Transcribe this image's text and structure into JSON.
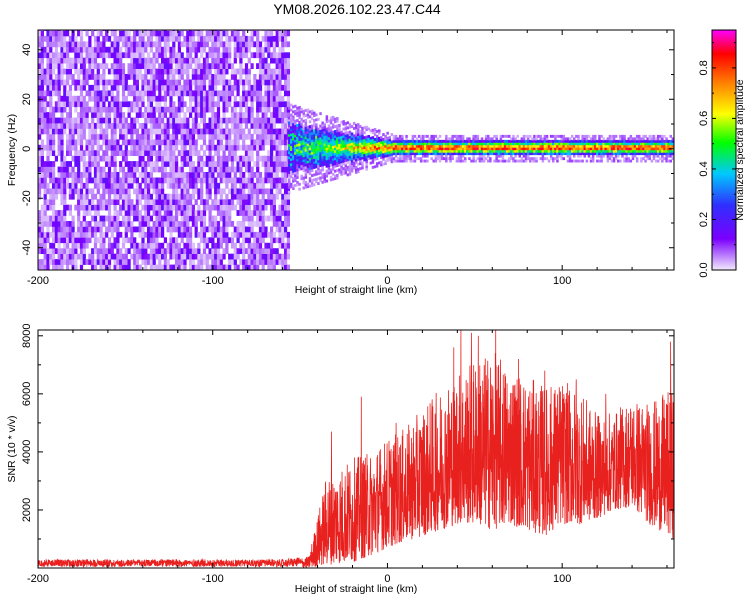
{
  "title": "YM08.2026.102.23.47.C44",
  "chart_data": [
    {
      "type": "heatmap",
      "name": "spectrogram",
      "xlabel": "Height of straight line (km)",
      "ylabel": "Frequency (Hz)",
      "xlim": [
        -200,
        164
      ],
      "ylim": [
        -49,
        48
      ],
      "xticks": [
        -200,
        -100,
        0,
        100
      ],
      "yticks": [
        -40,
        -20,
        0,
        20,
        40
      ],
      "noise_region_x": [
        -200,
        -57
      ],
      "signal_band_center_hz": 0,
      "signal_band_halfwidth_hz": [
        10,
        3
      ],
      "colorbar": {
        "label": "Normalized spectral amplitude",
        "range": [
          0.0,
          0.95
        ],
        "ticks": [
          0.0,
          0.2,
          0.4,
          0.6,
          0.8
        ],
        "colormap": [
          "#f2eafc",
          "#7a00ff",
          "#2f2fff",
          "#00c8ff",
          "#00ff00",
          "#ffff00",
          "#ff7f00",
          "#ff0000",
          "#ff00ff"
        ]
      }
    },
    {
      "type": "line",
      "name": "snr",
      "xlabel": "Height of straight line (km)",
      "ylabel": "SNR (10 * v/v)",
      "xlim": [
        -200,
        164
      ],
      "ylim": [
        0,
        8200
      ],
      "xticks": [
        -200,
        -100,
        0,
        100
      ],
      "yticks": [
        2000,
        4000,
        6000,
        8000
      ],
      "color": "#e8201e",
      "envelope": {
        "x": [
          -200,
          -60,
          -45,
          -35,
          -20,
          -10,
          0,
          10,
          20,
          30,
          40,
          50,
          60,
          70,
          80,
          90,
          100,
          110,
          120,
          130,
          140,
          150,
          164
        ],
        "low": [
          0,
          0,
          0,
          100,
          200,
          400,
          700,
          900,
          1100,
          1300,
          1500,
          1500,
          1300,
          1500,
          1300,
          1100,
          1500,
          1500,
          1700,
          2000,
          2100,
          1500,
          1000
        ],
        "high": [
          300,
          300,
          400,
          3200,
          3800,
          4000,
          4500,
          4800,
          5500,
          6200,
          6800,
          7200,
          7500,
          7000,
          6600,
          6300,
          6500,
          6100,
          5300,
          5400,
          5900,
          5700,
          6200
        ]
      },
      "peaks": [
        [
          -32,
          4700
        ],
        [
          -15,
          5900
        ],
        [
          5,
          5000
        ],
        [
          38,
          7600
        ],
        [
          42,
          8200
        ],
        [
          48,
          8100
        ],
        [
          52,
          8000
        ],
        [
          62,
          8200
        ],
        [
          75,
          7200
        ],
        [
          90,
          6800
        ],
        [
          108,
          6500
        ],
        [
          125,
          6000
        ],
        [
          162,
          7800
        ]
      ]
    }
  ]
}
